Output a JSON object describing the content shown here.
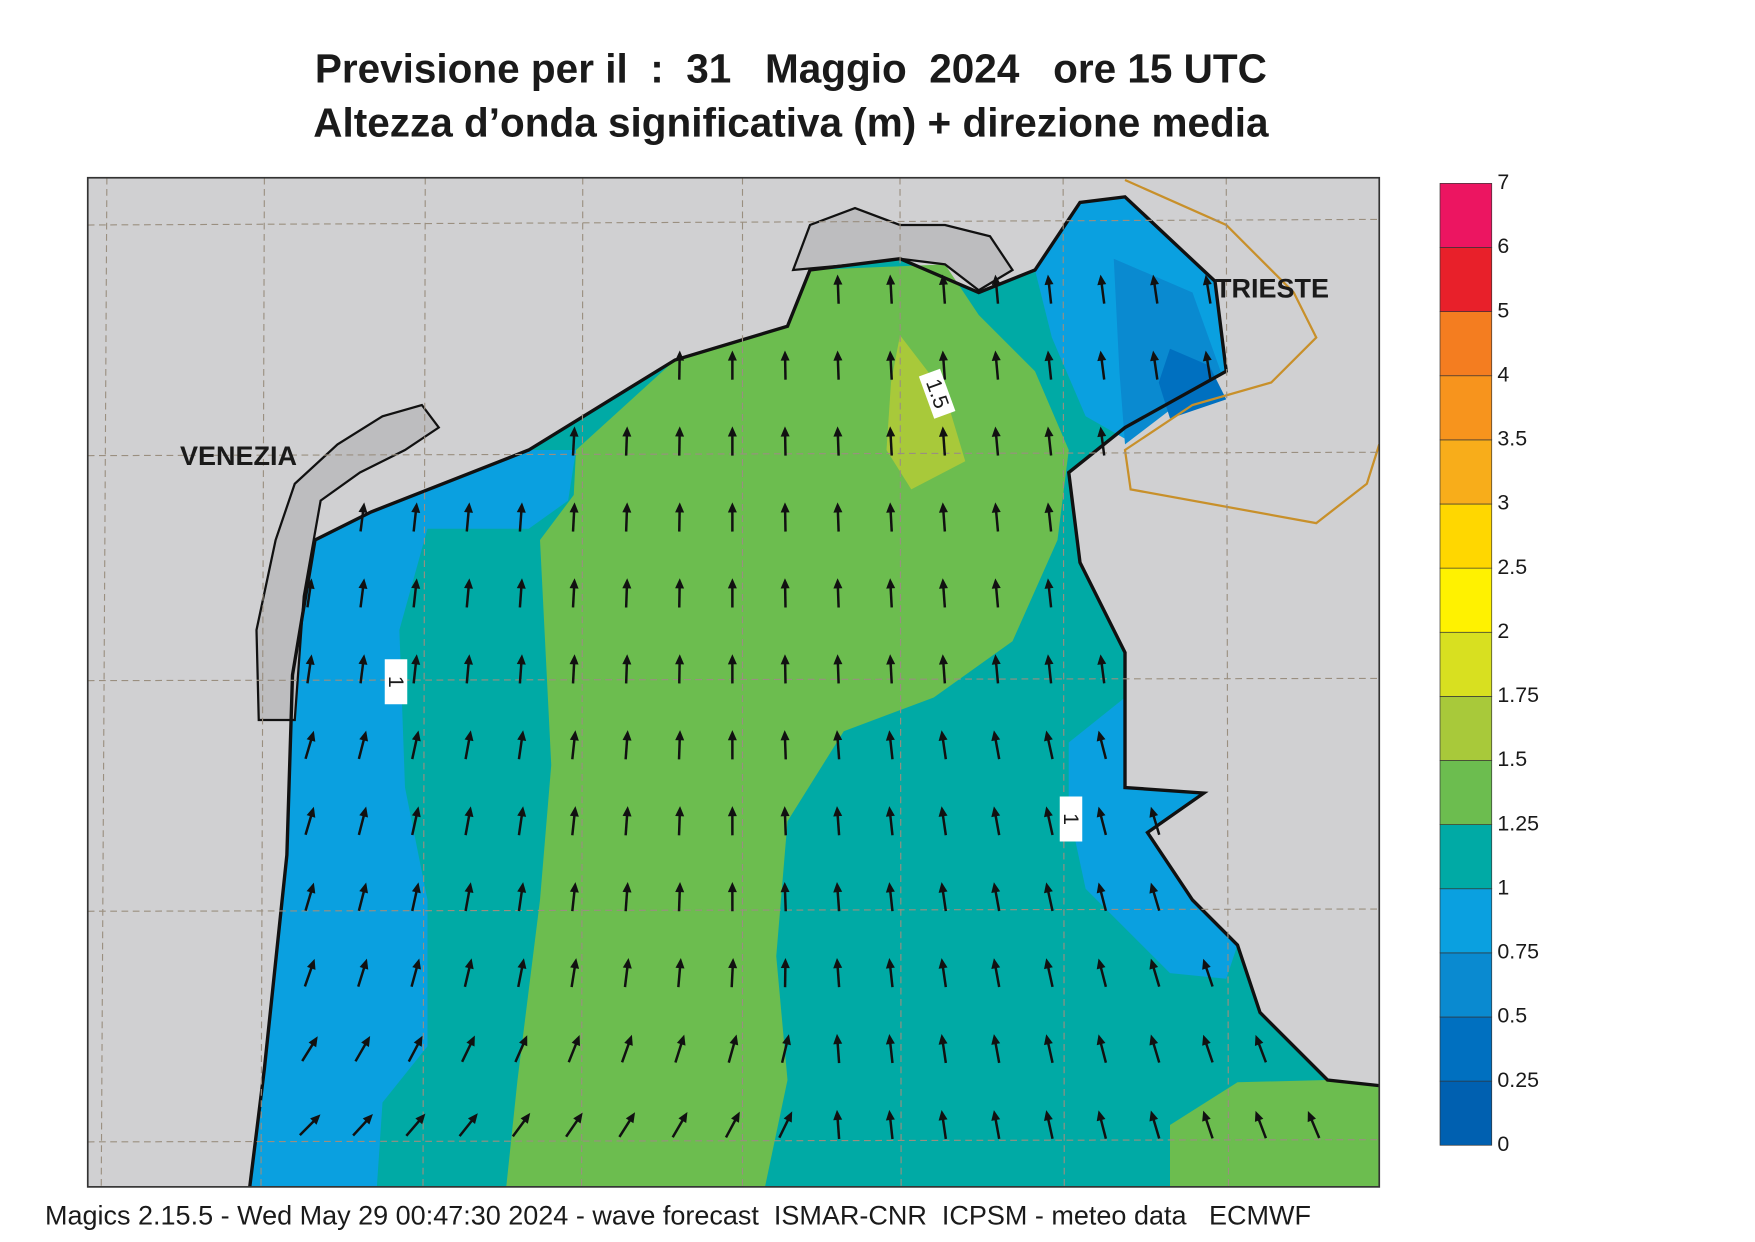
{
  "title": {
    "line1": "Previsione per il  :  31   Maggio  2024   ore 15 UTC",
    "line2": "Altezza d’onda significativa (m) + direzione media"
  },
  "places": [
    "VENEZIA",
    "TRIESTE"
  ],
  "contour_labels": [
    1.5,
    1,
    1
  ],
  "legend": {
    "ticks": [
      0,
      0.25,
      0.5,
      0.75,
      1,
      1.25,
      1.5,
      1.75,
      2,
      2.5,
      3,
      3.5,
      4,
      5,
      6,
      7
    ],
    "colors": [
      "#0060b0",
      "#0070c0",
      "#0a8ad0",
      "#0aa0e0",
      "#00aaa5",
      "#6cbd4f",
      "#a8c93a",
      "#d8e020",
      "#fff200",
      "#ffd700",
      "#f8ad1a",
      "#f7941d",
      "#f47d20",
      "#e8202a",
      "#ec1561"
    ]
  },
  "footer": "Magics 2.15.5 - Wed May 29 00:47:30 2024 - wave forecast  ISMAR-CNR  ICPSM - meteo data   ECMWF"
}
